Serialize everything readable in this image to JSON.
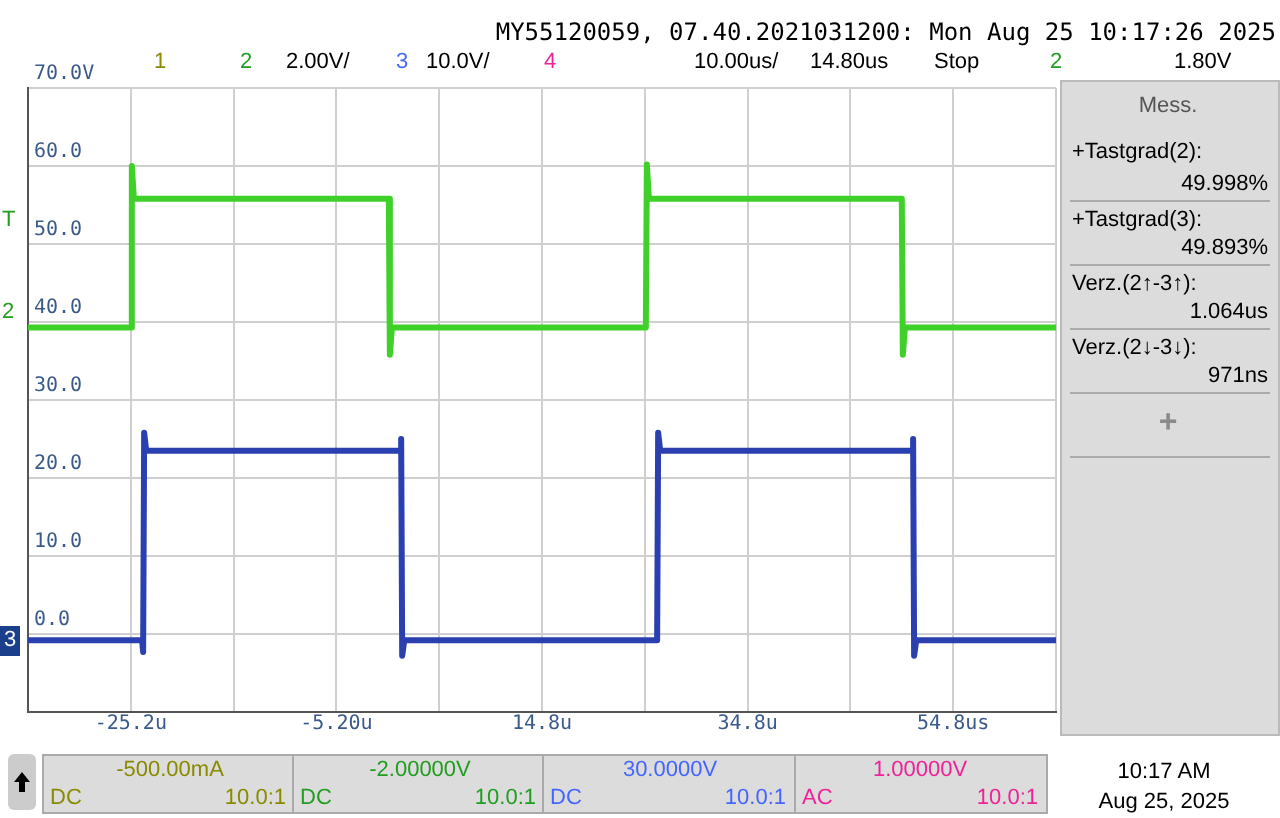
{
  "chart_data": {
    "type": "line",
    "series": [
      {
        "color": "#3fd12a",
        "x": [
          -35.2,
          -25.2,
          -25.1,
          -24.9,
          -0.1,
          0,
          0.2,
          24.9,
          25,
          25.2,
          49.8,
          49.9,
          50.1,
          64.8
        ],
        "values": [
          39.3,
          39.3,
          60,
          55.8,
          55.8,
          35.8,
          39.3,
          39.3,
          60.2,
          55.8,
          55.8,
          35.8,
          39.3,
          39.3
        ]
      },
      {
        "color": "#2a3fb0",
        "x": [
          -35.2,
          -24.1,
          -24,
          -23.9,
          -23.7,
          1,
          1.1,
          1.2,
          1.4,
          26,
          26.1,
          26.3,
          50.8,
          50.9,
          51,
          51.2,
          64.8
        ],
        "values": [
          -0.8,
          -0.8,
          -2.3,
          25.8,
          23.5,
          23.5,
          25,
          -2.8,
          -0.8,
          -0.8,
          25.8,
          23.5,
          23.5,
          25,
          -2.8,
          -0.8,
          -0.8
        ]
      }
    ],
    "xlim": [
      -35.2,
      64.8
    ],
    "xticks": [
      {
        "value": -35.2,
        "label": null
      },
      {
        "value": -25.2,
        "label": "-25.2u"
      },
      {
        "value": -15.2,
        "label": null
      },
      {
        "value": -5.2,
        "label": "-5.20u"
      },
      {
        "value": 4.8,
        "label": null
      },
      {
        "value": 14.8,
        "label": "14.8u"
      },
      {
        "value": 24.8,
        "label": null
      },
      {
        "value": 34.8,
        "label": "34.8u"
      },
      {
        "value": 44.8,
        "label": null
      },
      {
        "value": 54.8,
        "label": "54.8us"
      },
      {
        "value": 64.8,
        "label": null
      }
    ],
    "ylim": [
      -10,
      70
    ],
    "yticks": [
      {
        "value": -10,
        "label": null
      },
      {
        "value": 0,
        "label": "0.0"
      },
      {
        "value": 10,
        "label": "10.0"
      },
      {
        "value": 20,
        "label": "20.0"
      },
      {
        "value": 30,
        "label": "30.0"
      },
      {
        "value": 40,
        "label": "40.0"
      },
      {
        "value": 50,
        "label": "50.0"
      },
      {
        "value": 60,
        "label": "60.0"
      },
      {
        "value": 70,
        "label": "70.0V"
      }
    ],
    "grid": true,
    "legend": false,
    "marker": "none",
    "line_style": "solid",
    "annotations": [
      "MY55120059, 07.40.2021031200: Mon Aug 25 10:17:26 2025",
      "1",
      "2",
      "2.00V/",
      "3",
      "10.0V/",
      "4",
      "10.00us/",
      "14.80us",
      "Stop",
      "2",
      "1.80V",
      "Mess.",
      "+Tastgrad(2):",
      "49.998%",
      "+Tastgrad(3):",
      "49.893%",
      "Verz.(2↑-3↑):",
      "1.064us",
      "Verz.(2↓-3↓):",
      "971ns",
      "+",
      "-500.00mA",
      "DC",
      "10.0:1",
      "-2.00000V",
      "DC",
      "10.0:1",
      "30.0000V",
      "DC",
      "10.0:1",
      "1.00000V",
      "AC",
      "10.0:1",
      "10:17 AM",
      "Aug 25, 2025",
      "T",
      "2",
      "3"
    ]
  }
}
